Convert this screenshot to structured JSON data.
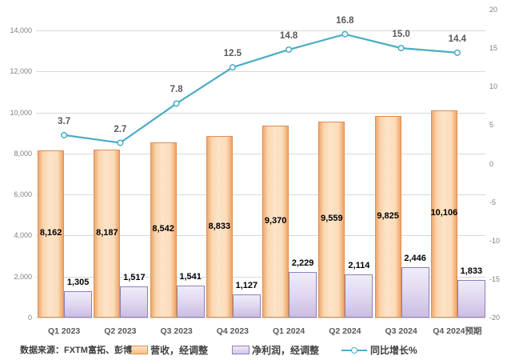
{
  "source_note": "数据来源：FXTM富拓、彭博",
  "legend": {
    "items": [
      {
        "label": "营收，经调整",
        "type": "bar-swatch"
      },
      {
        "label": "净利润，经调整",
        "type": "bar-swatch"
      },
      {
        "label": "同比增长%",
        "type": "line-symbol"
      }
    ]
  },
  "chart_data": {
    "type": "bar",
    "subtype": "combo-bar-line-dual-axis",
    "title": "",
    "categories": [
      "Q1 2023",
      "Q2 2023",
      "Q3 2023",
      "Q4 2023",
      "Q1 2024",
      "Q2 2024",
      "Q3 2024",
      "Q4 2024预期"
    ],
    "series": [
      {
        "name": "营收，经调整",
        "chart_type": "bar",
        "axis": "left",
        "values": [
          8162,
          8187,
          8542,
          8833,
          9370,
          9559,
          9825,
          10106
        ],
        "labels": [
          "8,162",
          "8,187",
          "8,542",
          "8,833",
          "9,370",
          "9,559",
          "9,825",
          "10,106"
        ]
      },
      {
        "name": "净利润，经调整",
        "chart_type": "bar",
        "axis": "left",
        "values": [
          1305,
          1517,
          1541,
          1127,
          2229,
          2114,
          2446,
          1833
        ],
        "labels": [
          "1,305",
          "1,517",
          "1,541",
          "1,127",
          "2,229",
          "2,114",
          "2,446",
          "1,833"
        ]
      },
      {
        "name": "同比增长%",
        "chart_type": "line",
        "axis": "right",
        "values": [
          3.7,
          2.7,
          7.8,
          12.5,
          14.8,
          16.8,
          15.0,
          14.4
        ],
        "labels": [
          "3.7",
          "2.7",
          "7.8",
          "12.5",
          "14.8",
          "16.8",
          "15.0",
          "14.4"
        ]
      }
    ],
    "left_axis": {
      "min": 0,
      "max": 14000,
      "step": 2000,
      "tick_labels": [
        "0",
        "2,000",
        "4,000",
        "6,000",
        "8,000",
        "10,000",
        "12,000",
        "14,000"
      ]
    },
    "right_axis": {
      "min": -20,
      "max": 20,
      "step": 5,
      "tick_labels": [
        "-20",
        "-15",
        "-10",
        "-5",
        "0",
        "5",
        "10",
        "15",
        "20"
      ]
    },
    "grid": true,
    "legend_position": "bottom"
  },
  "colors": {
    "bar_revenue_fill": "#fbdcba",
    "bar_revenue_border": "#e08f52",
    "bar_profit_fill": "#dcd3ed",
    "bar_profit_border": "#8f7dbe",
    "line": "#4bacc6",
    "line_label": "#595959",
    "bar_label": "#000000",
    "axis_label": "#7f7f7f",
    "gridline": "#d9d9d9"
  }
}
